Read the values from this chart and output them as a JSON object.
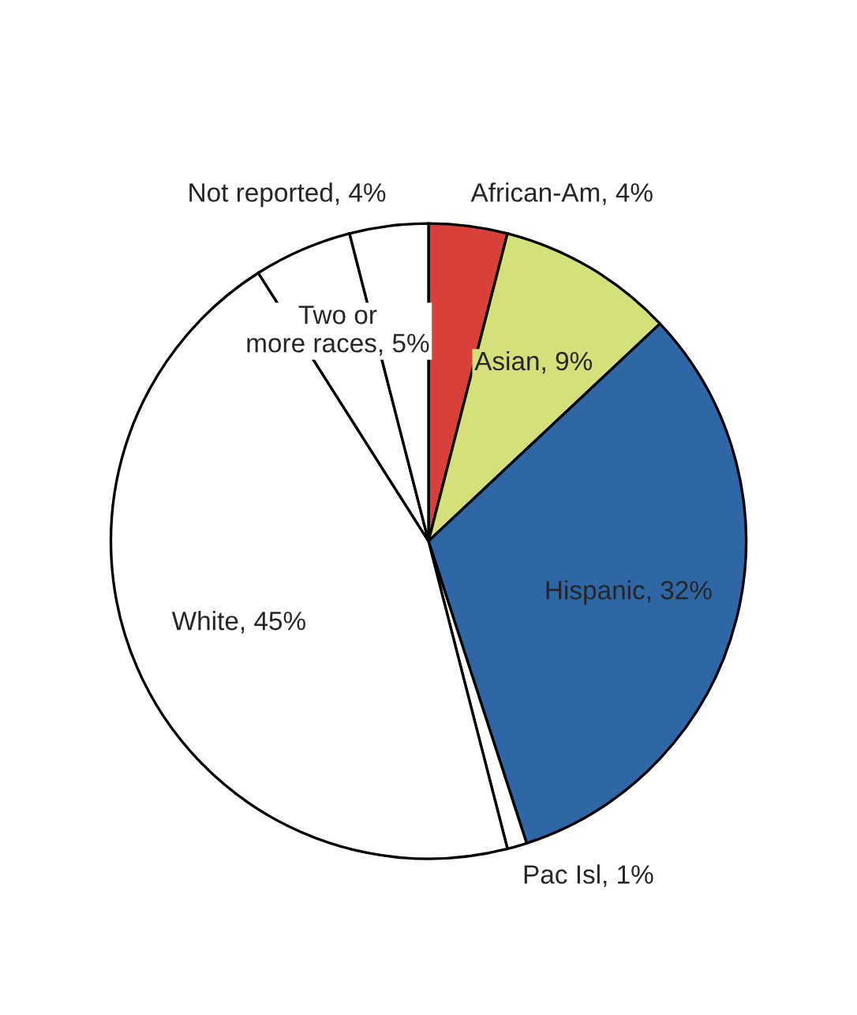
{
  "chart_data": {
    "type": "pie",
    "categories": [
      "African-Am",
      "Asian",
      "Hispanic",
      "Pac Isl",
      "White",
      "Two or more races",
      "Not reported"
    ],
    "values": [
      4,
      9,
      32,
      1,
      45,
      5,
      4
    ],
    "value_labels": [
      "4%",
      "9%",
      "32%",
      "1%",
      "45%",
      "5%",
      "4%"
    ],
    "colors": [
      "#d9403a",
      "#d6e07a",
      "#2e66a6",
      "#ffffff",
      "#ffffff",
      "#ffffff",
      "#ffffff"
    ]
  }
}
